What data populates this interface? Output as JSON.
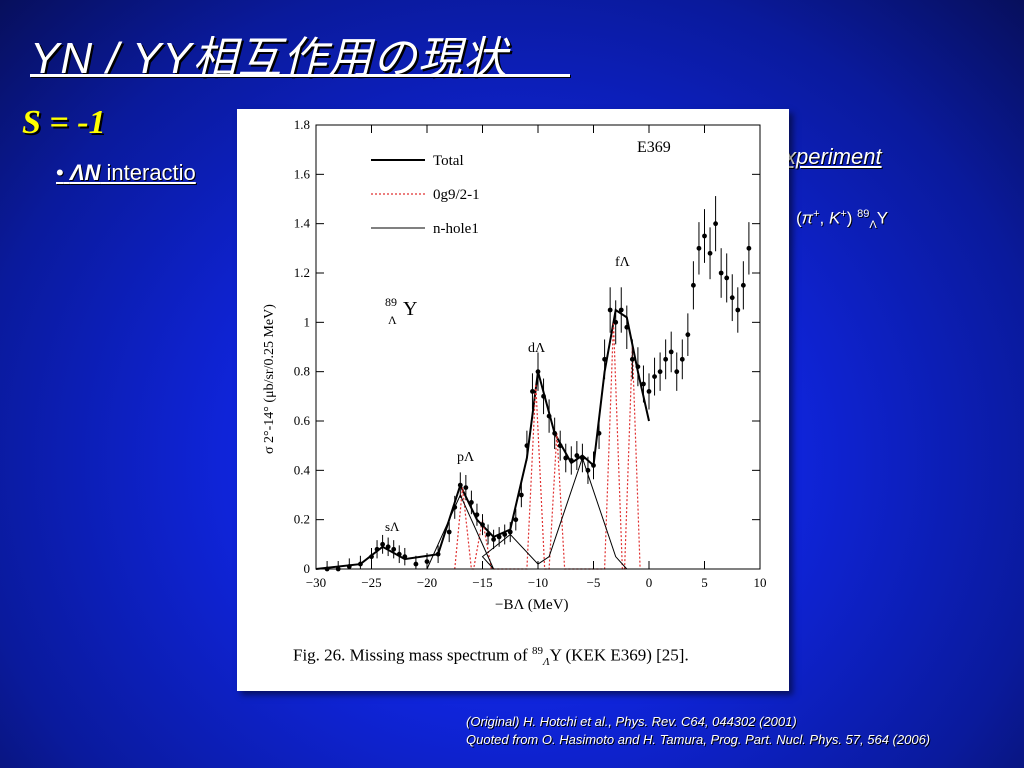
{
  "slide": {
    "title": "YN / YY相互作用の現状",
    "subtitle": "S = -1",
    "bullet_marker": "•",
    "bullet_symbol": "ΛN",
    "bullet_text": "interactio",
    "experiment_text": "xperiment",
    "reaction": {
      "open": "(",
      "pi": "π",
      "plus1": "+",
      "comma": ", ",
      "k": "K",
      "plus2": "+",
      "close": ") ",
      "mass": "89",
      "lambda": "Λ",
      "element": "Y"
    },
    "refs": {
      "original": "(Original) H. Hotchi et al., Phys. Rev. C64, 044302 (2001)",
      "quoted": "Quoted from O. Hasimoto and H. Tamura, Prog. Part. Nucl. Phys. 57, 564 (2006)"
    }
  },
  "figure": {
    "caption_prefix": "Fig. 26. Missing mass spectrum of",
    "caption_mass": "89",
    "caption_lambda": "Λ",
    "caption_suffix": "Y (KEK E369) [25].",
    "experiment_label": "E369",
    "nucleus_mass": "89",
    "nucleus_lambda": "Λ",
    "nucleus_element": "Y",
    "legend": [
      {
        "label": "Total",
        "style": "solid-thick",
        "color": "#000000"
      },
      {
        "label": "0g9/2-1",
        "style": "dotted",
        "color": "#e03030"
      },
      {
        "label": "n-hole1",
        "style": "solid-thin",
        "color": "#000000"
      }
    ],
    "peak_labels": [
      "sΛ",
      "pΛ",
      "dΛ",
      "fΛ"
    ]
  },
  "chart_data": {
    "type": "scatter",
    "title": "E369",
    "xlabel": "−BΛ (MeV)",
    "ylabel": "σ 2°-14° (μb/sr/0.25 MeV)",
    "xlim": [
      -30,
      10
    ],
    "ylim": [
      0,
      1.8
    ],
    "xticks": [
      -30,
      -25,
      -20,
      -15,
      -10,
      -5,
      0,
      5,
      10
    ],
    "yticks": [
      0,
      0.2,
      0.4,
      0.6,
      0.8,
      1,
      1.2,
      1.4,
      1.6,
      1.8
    ],
    "series": [
      {
        "name": "data",
        "points": [
          [
            -29,
            0.0
          ],
          [
            -28,
            0.0
          ],
          [
            -27,
            0.01
          ],
          [
            -26,
            0.02
          ],
          [
            -25,
            0.05
          ],
          [
            -24.5,
            0.08
          ],
          [
            -24,
            0.1
          ],
          [
            -23.5,
            0.09
          ],
          [
            -23,
            0.08
          ],
          [
            -22.5,
            0.06
          ],
          [
            -22,
            0.05
          ],
          [
            -21,
            0.02
          ],
          [
            -20,
            0.03
          ],
          [
            -19,
            0.06
          ],
          [
            -18,
            0.15
          ],
          [
            -17.5,
            0.25
          ],
          [
            -17,
            0.34
          ],
          [
            -16.5,
            0.33
          ],
          [
            -16,
            0.27
          ],
          [
            -15.5,
            0.22
          ],
          [
            -15,
            0.18
          ],
          [
            -14.5,
            0.14
          ],
          [
            -14,
            0.12
          ],
          [
            -13.5,
            0.13
          ],
          [
            -13,
            0.14
          ],
          [
            -12.5,
            0.15
          ],
          [
            -12,
            0.2
          ],
          [
            -11.5,
            0.3
          ],
          [
            -11,
            0.5
          ],
          [
            -10.5,
            0.72
          ],
          [
            -10,
            0.8
          ],
          [
            -9.5,
            0.7
          ],
          [
            -9,
            0.62
          ],
          [
            -8.5,
            0.55
          ],
          [
            -8,
            0.5
          ],
          [
            -7.5,
            0.45
          ],
          [
            -7,
            0.44
          ],
          [
            -6.5,
            0.46
          ],
          [
            -6,
            0.45
          ],
          [
            -5.5,
            0.4
          ],
          [
            -5,
            0.42
          ],
          [
            -4.5,
            0.55
          ],
          [
            -4,
            0.85
          ],
          [
            -3.5,
            1.05
          ],
          [
            -3,
            1.0
          ],
          [
            -2.5,
            1.05
          ],
          [
            -2,
            0.98
          ],
          [
            -1.5,
            0.85
          ],
          [
            -1,
            0.82
          ],
          [
            -0.5,
            0.75
          ],
          [
            0,
            0.72
          ],
          [
            0.5,
            0.78
          ],
          [
            1,
            0.8
          ],
          [
            1.5,
            0.85
          ],
          [
            2,
            0.88
          ],
          [
            2.5,
            0.8
          ],
          [
            3,
            0.85
          ],
          [
            3.5,
            0.95
          ],
          [
            4,
            1.15
          ],
          [
            4.5,
            1.3
          ],
          [
            5,
            1.35
          ],
          [
            5.5,
            1.28
          ],
          [
            6,
            1.4
          ],
          [
            6.5,
            1.2
          ],
          [
            7,
            1.18
          ],
          [
            7.5,
            1.1
          ],
          [
            8,
            1.05
          ],
          [
            8.5,
            1.15
          ],
          [
            9,
            1.3
          ]
        ]
      },
      {
        "name": "Total",
        "points": [
          [
            -30,
            0
          ],
          [
            -26,
            0.02
          ],
          [
            -24,
            0.09
          ],
          [
            -22,
            0.04
          ],
          [
            -19,
            0.06
          ],
          [
            -17,
            0.34
          ],
          [
            -15.5,
            0.2
          ],
          [
            -14,
            0.13
          ],
          [
            -12.5,
            0.16
          ],
          [
            -11,
            0.45
          ],
          [
            -10,
            0.8
          ],
          [
            -8.5,
            0.55
          ],
          [
            -7,
            0.43
          ],
          [
            -6,
            0.46
          ],
          [
            -5,
            0.42
          ],
          [
            -4,
            0.8
          ],
          [
            -3,
            1.05
          ],
          [
            -2,
            1.02
          ],
          [
            -1,
            0.8
          ],
          [
            0,
            0.6
          ]
        ]
      },
      {
        "name": "0g9/2-1",
        "points": [
          [
            -17.5,
            0
          ],
          [
            -16.8,
            0.33
          ],
          [
            -16,
            0
          ],
          [
            -15.8,
            0
          ],
          [
            -15,
            0.2
          ],
          [
            -14.2,
            0
          ],
          [
            -11,
            0
          ],
          [
            -10.2,
            0.75
          ],
          [
            -9.4,
            0
          ],
          [
            -9,
            0
          ],
          [
            -8.3,
            0.55
          ],
          [
            -7.6,
            0
          ],
          [
            -4,
            0
          ],
          [
            -3.2,
            1.0
          ],
          [
            -2.4,
            0
          ],
          [
            -2.2,
            0
          ],
          [
            -1.5,
            0.9
          ],
          [
            -0.8,
            0
          ]
        ]
      },
      {
        "name": "n-hole1",
        "points": [
          [
            -20,
            0
          ],
          [
            -17,
            0.3
          ],
          [
            -14,
            0.0
          ],
          [
            -15,
            0.05
          ],
          [
            -12.5,
            0.14
          ],
          [
            -10,
            0.02
          ],
          [
            -9,
            0.05
          ],
          [
            -6,
            0.45
          ],
          [
            -3,
            0.05
          ],
          [
            -2,
            0
          ]
        ]
      }
    ]
  }
}
